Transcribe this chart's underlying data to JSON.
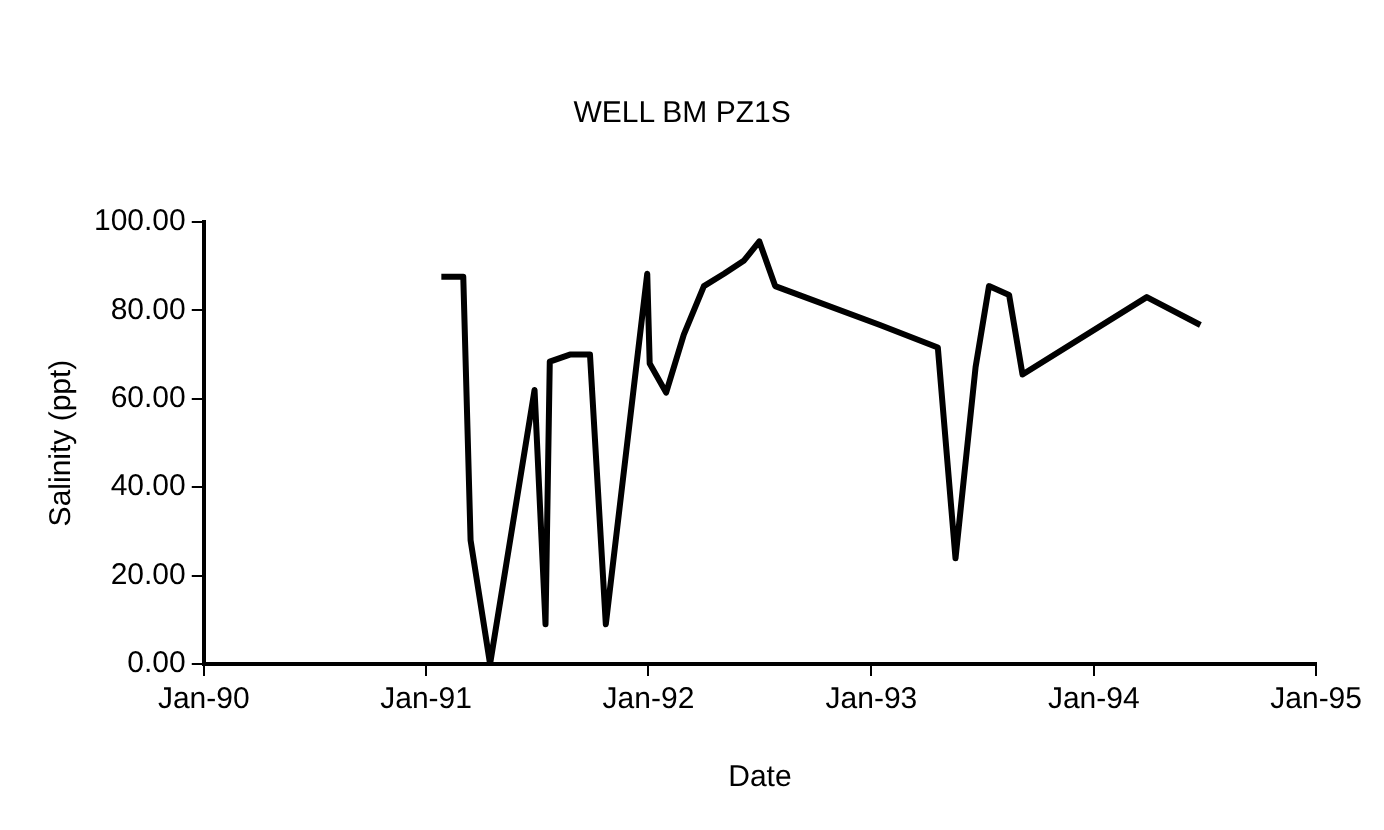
{
  "chart_data": {
    "type": "line",
    "title": "WELL BM PZ1S",
    "xlabel": "Date",
    "ylabel": "Salinity (ppt)",
    "x": [
      "1991-01-26",
      "1991-03-03",
      "1991-03-15",
      "1991-04-16",
      "1991-06-28",
      "1991-07-16",
      "1991-07-23",
      "1991-08-25",
      "1991-09-27",
      "1991-10-23",
      "1991-12-30",
      "1992-01-03",
      "1992-01-30",
      "1992-02-28",
      "1992-04-01",
      "1992-05-04",
      "1992-06-06",
      "1992-07-01",
      "1992-07-27",
      "1993-01-15",
      "1993-04-20",
      "1993-05-19",
      "1993-06-21",
      "1993-07-13",
      "1993-08-15",
      "1993-09-06",
      "1994-03-29",
      "1994-06-25"
    ],
    "values": [
      87.6,
      87.6,
      28,
      0,
      62,
      9,
      68.4,
      70,
      70,
      9,
      88.3,
      68,
      61.4,
      74.5,
      85.5,
      88.3,
      91.3,
      95.6,
      85.5,
      76.7,
      71.6,
      23.9,
      67.2,
      85.5,
      83.5,
      65.5,
      83,
      76.7
    ],
    "color": "#000000",
    "marker": "none",
    "line_style": "solid",
    "grid": false,
    "legend": false,
    "xlim": [
      "1990-01-01",
      "1995-01-01"
    ],
    "xticks": [
      {
        "value": "1990-01-01",
        "label": "Jan-90"
      },
      {
        "value": "1991-01-01",
        "label": "Jan-91"
      },
      {
        "value": "1992-01-01",
        "label": "Jan-92"
      },
      {
        "value": "1993-01-01",
        "label": "Jan-93"
      },
      {
        "value": "1994-01-01",
        "label": "Jan-94"
      },
      {
        "value": "1995-01-01",
        "label": "Jan-95"
      }
    ],
    "ylim": [
      0,
      100
    ],
    "yticks": [
      {
        "value": 0,
        "label": "0.00"
      },
      {
        "value": 20,
        "label": "20.00"
      },
      {
        "value": 40,
        "label": "40.00"
      },
      {
        "value": 60,
        "label": "60.00"
      },
      {
        "value": 80,
        "label": "80.00"
      },
      {
        "value": 100,
        "label": "100.00"
      }
    ]
  }
}
